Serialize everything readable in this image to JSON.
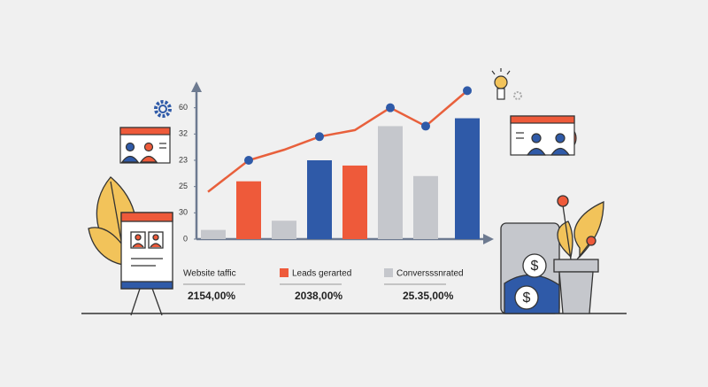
{
  "chart_data": {
    "type": "bar",
    "categories": [
      null,
      null,
      null,
      null,
      null,
      null,
      null,
      null
    ],
    "values": [
      3.5,
      22,
      7,
      30,
      28,
      43,
      24,
      46
    ],
    "colors": [
      "#c5c7cc",
      "#ee5a3a",
      "#c5c7cc",
      "#2f5aa8",
      "#ee5a3a",
      "#c5c7cc",
      "#c5c7cc",
      "#2f5aa8"
    ],
    "line": {
      "type": "line",
      "color": "#e8603c",
      "marker_color": "#2f5aa8",
      "values": [
        18,
        30,
        34,
        39,
        41.5,
        50,
        43,
        56.5
      ],
      "markers": [
        false,
        true,
        false,
        true,
        false,
        true,
        true,
        true
      ]
    },
    "ylim": [
      0,
      60
    ],
    "yticks": [
      0,
      {
        "value": 10,
        "label": "30"
      },
      {
        "value": 20,
        "label": "25"
      },
      {
        "value": 30,
        "label": "23"
      },
      {
        "value": 40,
        "label": "32"
      },
      {
        "value": 50,
        "label": "60"
      }
    ],
    "legend": [
      {
        "name": "Website taffic",
        "stat": "2154,00%"
      },
      {
        "name": "Leads gerarted",
        "color": "#ee5a3a",
        "stat": "2038,00%"
      },
      {
        "name": "Conversssnrated",
        "color": "#c5c7cc",
        "stat": "25.35,00%"
      }
    ]
  }
}
